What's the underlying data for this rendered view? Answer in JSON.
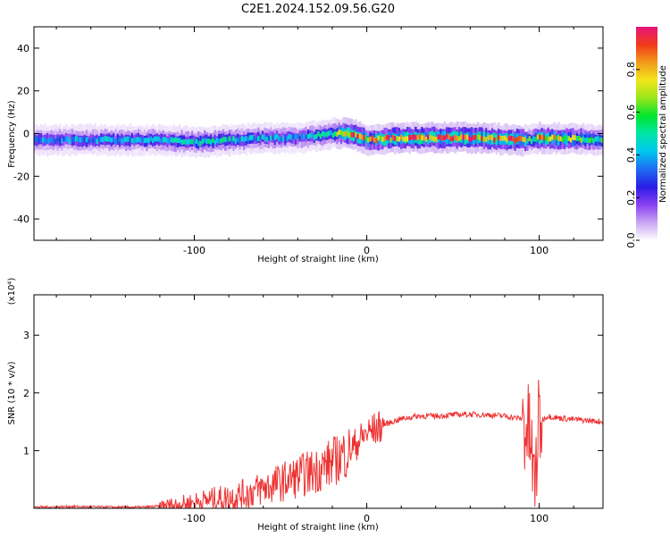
{
  "title": "C2E1.2024.152.09.56.G20",
  "chart_data": [
    {
      "type": "heatmap",
      "xlabel": "Height of straight line (km)",
      "ylabel": "Frequency (Hz)",
      "xlim": [
        -193,
        137
      ],
      "ylim": [
        -50,
        50
      ],
      "x_ticks": [
        "-100",
        "0",
        "100"
      ],
      "y_ticks": [
        "40",
        "20",
        "0",
        "-20",
        "-40"
      ],
      "colorbar": {
        "label": "Normalized spectral amplitude",
        "range": [
          0,
          1
        ],
        "ticks": [
          "0.0",
          "0.2",
          "0.4",
          "0.6",
          "0.8"
        ],
        "colors": [
          "#ffffff",
          "#c9a6f2",
          "#8a3ff2",
          "#2a1ee6",
          "#1e6cf2",
          "#00c8f0",
          "#00e6a6",
          "#00e62e",
          "#9ae61a",
          "#f2e61a",
          "#f29a1a",
          "#f23a1a",
          "#e6147a"
        ]
      },
      "ridge": {
        "x": [
          -193,
          -160,
          -140,
          -120,
          -100,
          -80,
          -60,
          -40,
          -20,
          -10,
          0,
          20,
          60,
          90,
          95,
          100,
          137
        ],
        "frequency": [
          -3,
          -3,
          -3,
          -3,
          -4,
          -3,
          -2,
          -2,
          0,
          0,
          -3,
          -2,
          -2,
          -3,
          -3,
          -2,
          -3
        ],
        "amplitude": [
          0.35,
          0.38,
          0.38,
          0.4,
          0.45,
          0.45,
          0.4,
          0.35,
          0.5,
          0.9,
          0.7,
          0.9,
          0.85,
          0.8,
          0.45,
          0.8,
          0.5
        ]
      }
    },
    {
      "type": "line",
      "xlabel": "Height of straight line (km)",
      "ylabel": "SNR (10 * v/v)",
      "yscale_label": "(x10⁴)",
      "xlim": [
        -193,
        137
      ],
      "ylim": [
        0,
        3.7
      ],
      "x_ticks": [
        "-100",
        "0",
        "100"
      ],
      "y_ticks": [
        "1",
        "2",
        "3"
      ],
      "series": [
        {
          "color": "#ee3333",
          "x": [
            -193,
            -170,
            -150,
            -130,
            -112,
            -100,
            -90,
            -80,
            -70,
            -60,
            -50,
            -40,
            -30,
            -20,
            -10,
            0,
            10,
            20,
            30,
            40,
            50,
            60,
            70,
            80,
            90,
            95,
            97,
            100,
            105,
            110,
            120,
            137
          ],
          "y": [
            0.02,
            0.03,
            0.02,
            0.02,
            0.05,
            0.1,
            0.15,
            0.18,
            0.25,
            0.35,
            0.45,
            0.55,
            0.65,
            0.8,
            1.0,
            1.3,
            1.45,
            1.55,
            1.6,
            1.6,
            1.62,
            1.63,
            1.62,
            1.6,
            1.55,
            1.2,
            0.3,
            1.5,
            1.6,
            1.57,
            1.54,
            1.5
          ]
        }
      ]
    }
  ]
}
